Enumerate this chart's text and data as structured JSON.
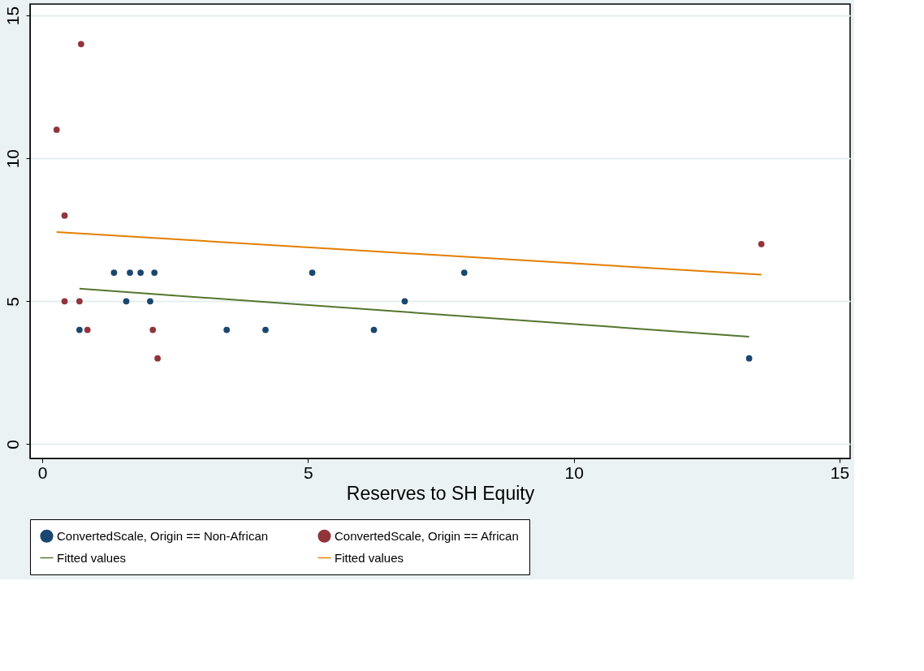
{
  "chart_data": {
    "type": "scatter",
    "xlabel": "Reserves to SH Equity",
    "xlim": [
      -0.23,
      15.2
    ],
    "ylim": [
      -0.5,
      15.4
    ],
    "xticks": [
      0,
      5,
      10,
      15
    ],
    "yticks": [
      0,
      5,
      10,
      15
    ],
    "grid": "y",
    "legend": "bottom",
    "series": [
      {
        "name": "ConvertedScale, Origin == Non-African",
        "marker": "circle",
        "color": "#1a476f",
        "x": [
          0.7,
          1.35,
          1.58,
          1.65,
          1.85,
          2.03,
          2.11,
          3.47,
          4.2,
          5.08,
          6.24,
          6.82,
          7.94,
          13.3
        ],
        "values": [
          4,
          6,
          5,
          6,
          6,
          5,
          6,
          4,
          4,
          6,
          4,
          5,
          6,
          3
        ]
      },
      {
        "name": "ConvertedScale, Origin == African",
        "marker": "circle",
        "color": "#90353b",
        "x": [
          0.27,
          0.42,
          0.42,
          0.7,
          0.73,
          0.85,
          2.08,
          2.17,
          13.53
        ],
        "values": [
          11,
          8,
          5,
          5,
          14,
          4,
          4,
          3,
          7
        ]
      },
      {
        "name": "Fitted values",
        "type": "line",
        "color": "#55752f",
        "x": [
          0.7,
          13.3
        ],
        "values": [
          5.44,
          3.76
        ]
      },
      {
        "name": "Fitted values",
        "type": "line",
        "color": "#e37e00",
        "x": [
          0.27,
          13.53
        ],
        "values": [
          7.42,
          5.93
        ]
      }
    ]
  }
}
